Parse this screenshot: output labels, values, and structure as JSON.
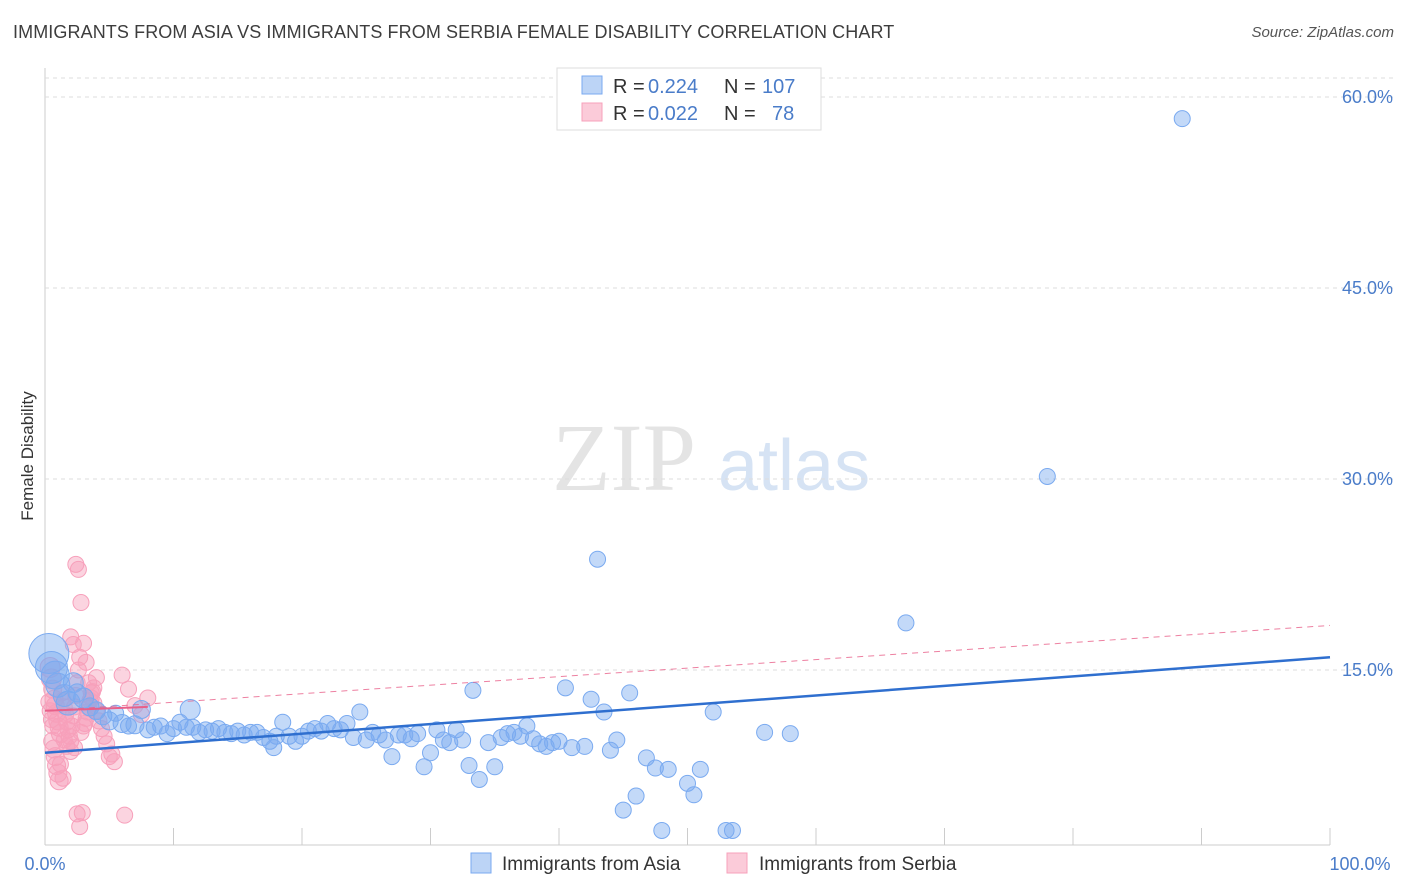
{
  "title": "IMMIGRANTS FROM ASIA VS IMMIGRANTS FROM SERBIA FEMALE DISABILITY CORRELATION CHART",
  "source": "Source: ZipAtlas.com",
  "watermark": {
    "zip": "ZIP",
    "atlas": "atlas"
  },
  "colors": {
    "asia": "#7aaaf0",
    "asia_line": "#2f6fcf",
    "serbia": "#f7a0bb",
    "serbia_line": "#e8608a",
    "axis_label": "#4a7cc9",
    "grid": "#dddddd"
  },
  "legend": {
    "asia": {
      "r_label": "R =",
      "r_value": "0.224",
      "n_label": "N =",
      "n_value": "107"
    },
    "serbia": {
      "r_label": "R =",
      "r_value": "0.022",
      "n_label": "N =",
      "n_value": "78"
    }
  },
  "chart_data": {
    "type": "scatter",
    "title": "IMMIGRANTS FROM ASIA VS IMMIGRANTS FROM SERBIA FEMALE DISABILITY CORRELATION CHART",
    "xlabel": "",
    "ylabel": "Female Disability",
    "xlim": [
      0,
      100
    ],
    "ylim": [
      0,
      63
    ],
    "x_tick_labels": [
      "0.0%",
      "100.0%"
    ],
    "y_ticks": [
      15,
      30,
      45,
      60
    ],
    "y_tick_labels": [
      "15.0%",
      "30.0%",
      "45.0%",
      "60.0%"
    ],
    "grid": true,
    "series": [
      {
        "name": "Immigrants from Asia",
        "r": 0.224,
        "n": 107,
        "trend": {
          "x0": 0,
          "y0": 8.5,
          "x1": 100,
          "y1": 16.0,
          "style": "solid"
        },
        "points": [
          [
            0.3,
            16.3,
            20
          ],
          [
            0.5,
            15.2,
            16
          ],
          [
            0.8,
            14.6,
            14
          ],
          [
            1.0,
            13.8,
            12
          ],
          [
            1.5,
            13.0,
            11
          ],
          [
            1.8,
            12.4,
            12
          ],
          [
            2.2,
            14.0,
            10
          ],
          [
            2.5,
            13.2,
            9
          ],
          [
            3.0,
            12.8,
            10
          ],
          [
            3.5,
            12.1,
            9
          ],
          [
            4.0,
            11.8,
            9
          ],
          [
            4.5,
            11.4,
            9
          ],
          [
            5.0,
            11.0,
            9
          ],
          [
            5.5,
            11.6,
            8
          ],
          [
            6.0,
            10.8,
            9
          ],
          [
            6.5,
            10.6,
            8
          ],
          [
            7.0,
            10.7,
            9
          ],
          [
            7.5,
            11.9,
            9
          ],
          [
            8.0,
            10.3,
            8
          ],
          [
            8.5,
            10.5,
            8
          ],
          [
            9.0,
            10.6,
            8
          ],
          [
            9.5,
            10.0,
            8
          ],
          [
            10.0,
            10.4,
            8
          ],
          [
            10.5,
            10.9,
            8
          ],
          [
            11.0,
            10.5,
            8
          ],
          [
            11.3,
            11.9,
            10
          ],
          [
            11.5,
            10.5,
            8
          ],
          [
            12.0,
            10.1,
            8
          ],
          [
            12.5,
            10.3,
            8
          ],
          [
            13.0,
            10.2,
            8
          ],
          [
            13.5,
            10.4,
            8
          ],
          [
            14.0,
            10.1,
            8
          ],
          [
            14.5,
            10.0,
            8
          ],
          [
            15.0,
            10.2,
            8
          ],
          [
            15.5,
            9.9,
            8
          ],
          [
            16.0,
            10.1,
            8
          ],
          [
            16.5,
            10.1,
            8
          ],
          [
            17.0,
            9.7,
            8
          ],
          [
            17.5,
            9.4,
            8
          ],
          [
            17.8,
            8.9,
            8
          ],
          [
            18.0,
            9.8,
            8
          ],
          [
            18.5,
            10.9,
            8
          ],
          [
            19.0,
            9.8,
            8
          ],
          [
            19.5,
            9.4,
            8
          ],
          [
            20.0,
            9.8,
            8
          ],
          [
            20.5,
            10.2,
            8
          ],
          [
            21.0,
            10.4,
            8
          ],
          [
            21.5,
            10.2,
            8
          ],
          [
            22.0,
            10.8,
            8
          ],
          [
            22.5,
            10.4,
            8
          ],
          [
            23.0,
            10.3,
            8
          ],
          [
            23.5,
            10.8,
            8
          ],
          [
            24.0,
            9.7,
            8
          ],
          [
            24.5,
            11.7,
            8
          ],
          [
            25.0,
            9.5,
            8
          ],
          [
            25.5,
            10.1,
            8
          ],
          [
            26.0,
            9.9,
            8
          ],
          [
            26.5,
            9.5,
            8
          ],
          [
            27.0,
            8.2,
            8
          ],
          [
            27.5,
            9.9,
            8
          ],
          [
            28.0,
            9.9,
            8
          ],
          [
            28.5,
            9.6,
            8
          ],
          [
            29.0,
            10.0,
            8
          ],
          [
            29.5,
            7.4,
            8
          ],
          [
            30.0,
            8.5,
            8
          ],
          [
            30.5,
            10.3,
            8
          ],
          [
            31.0,
            9.5,
            8
          ],
          [
            31.5,
            9.3,
            8
          ],
          [
            32.0,
            10.3,
            8
          ],
          [
            32.5,
            9.5,
            8
          ],
          [
            33.0,
            7.5,
            8
          ],
          [
            33.3,
            13.4,
            8
          ],
          [
            33.8,
            6.4,
            8
          ],
          [
            34.5,
            9.3,
            8
          ],
          [
            35.0,
            7.4,
            8
          ],
          [
            35.5,
            9.7,
            8
          ],
          [
            36.0,
            10.0,
            8
          ],
          [
            36.5,
            10.1,
            8
          ],
          [
            37.0,
            9.8,
            8
          ],
          [
            37.5,
            10.6,
            8
          ],
          [
            38.0,
            9.6,
            8
          ],
          [
            38.5,
            9.2,
            8
          ],
          [
            39.0,
            9.0,
            8
          ],
          [
            39.5,
            9.3,
            8
          ],
          [
            40.0,
            9.4,
            8
          ],
          [
            40.5,
            13.6,
            8
          ],
          [
            41.0,
            8.9,
            8
          ],
          [
            42.0,
            9.0,
            8
          ],
          [
            42.5,
            12.7,
            8
          ],
          [
            43.0,
            23.7,
            8
          ],
          [
            43.5,
            11.7,
            8
          ],
          [
            44.0,
            8.7,
            8
          ],
          [
            44.5,
            9.5,
            8
          ],
          [
            45.5,
            13.2,
            8
          ],
          [
            46.0,
            5.1,
            8
          ],
          [
            46.8,
            8.1,
            8
          ],
          [
            47.5,
            7.3,
            8
          ],
          [
            48.5,
            7.2,
            8
          ],
          [
            50.0,
            6.1,
            8
          ],
          [
            50.5,
            5.2,
            8
          ],
          [
            51.0,
            7.2,
            8
          ],
          [
            52.0,
            11.7,
            8
          ],
          [
            53.0,
            2.4,
            8
          ],
          [
            56.0,
            10.1,
            8
          ],
          [
            58.0,
            10.0,
            8
          ],
          [
            67.0,
            18.7,
            8
          ],
          [
            78.0,
            30.2,
            8
          ],
          [
            88.5,
            58.3,
            8
          ],
          [
            45.0,
            4.0,
            8
          ],
          [
            48.0,
            2.4,
            8
          ],
          [
            53.5,
            2.4,
            8
          ]
        ]
      },
      {
        "name": "Immigrants from Serbia",
        "r": 0.022,
        "n": 78,
        "trend_solid": {
          "x0": 0,
          "y0": 11.8,
          "x1": 8,
          "y1": 12.1
        },
        "trend": {
          "x0": 0,
          "y0": 11.8,
          "x1": 100,
          "y1": 18.5,
          "style": "dashed"
        },
        "points": [
          [
            0.4,
            15.2,
            10
          ],
          [
            0.5,
            14.3,
            10
          ],
          [
            0.6,
            13.5,
            9
          ],
          [
            0.7,
            12.7,
            9
          ],
          [
            0.8,
            12.2,
            9
          ],
          [
            0.9,
            11.6,
            9
          ],
          [
            1.0,
            11.0,
            9
          ],
          [
            1.1,
            10.5,
            9
          ],
          [
            1.2,
            10.0,
            9
          ],
          [
            0.6,
            9.4,
            9
          ],
          [
            0.7,
            8.8,
            9
          ],
          [
            0.8,
            8.2,
            9
          ],
          [
            0.9,
            7.5,
            9
          ],
          [
            1.0,
            6.9,
            9
          ],
          [
            1.1,
            6.3,
            9
          ],
          [
            1.3,
            13.2,
            8
          ],
          [
            1.4,
            12.6,
            8
          ],
          [
            1.5,
            12.1,
            8
          ],
          [
            1.6,
            11.5,
            8
          ],
          [
            1.7,
            10.9,
            8
          ],
          [
            1.8,
            10.3,
            8
          ],
          [
            1.9,
            9.8,
            8
          ],
          [
            2.0,
            9.4,
            8
          ],
          [
            2.1,
            10.6,
            8
          ],
          [
            2.2,
            11.4,
            8
          ],
          [
            2.3,
            12.1,
            8
          ],
          [
            2.4,
            13.0,
            8
          ],
          [
            2.5,
            14.0,
            8
          ],
          [
            2.6,
            15.0,
            8
          ],
          [
            2.7,
            16.0,
            8
          ],
          [
            2.0,
            17.6,
            8
          ],
          [
            2.2,
            17.0,
            8
          ],
          [
            2.4,
            23.3,
            8
          ],
          [
            2.6,
            22.9,
            8
          ],
          [
            2.8,
            20.3,
            8
          ],
          [
            3.0,
            17.1,
            8
          ],
          [
            3.2,
            15.6,
            8
          ],
          [
            3.4,
            14.0,
            8
          ],
          [
            3.6,
            13.2,
            8
          ],
          [
            3.8,
            12.4,
            8
          ],
          [
            4.0,
            11.8,
            8
          ],
          [
            4.2,
            11.0,
            8
          ],
          [
            4.4,
            10.4,
            8
          ],
          [
            4.6,
            9.8,
            8
          ],
          [
            4.8,
            9.2,
            8
          ],
          [
            5.0,
            8.2,
            8
          ],
          [
            5.2,
            8.4,
            8
          ],
          [
            5.4,
            7.8,
            8
          ],
          [
            3.0,
            10.6,
            8
          ],
          [
            3.2,
            11.2,
            8
          ],
          [
            3.4,
            12.0,
            8
          ],
          [
            3.6,
            12.8,
            8
          ],
          [
            3.8,
            13.6,
            8
          ],
          [
            4.0,
            14.4,
            8
          ],
          [
            6.0,
            14.6,
            8
          ],
          [
            6.5,
            13.5,
            8
          ],
          [
            7.0,
            12.2,
            8
          ],
          [
            7.5,
            11.5,
            8
          ],
          [
            8.0,
            12.8,
            8
          ],
          [
            2.5,
            3.7,
            8
          ],
          [
            2.9,
            3.8,
            8
          ],
          [
            2.7,
            2.7,
            8
          ],
          [
            6.2,
            3.6,
            8
          ],
          [
            1.5,
            9.5,
            8
          ],
          [
            1.7,
            9.0,
            8
          ],
          [
            2.0,
            8.6,
            8
          ],
          [
            2.3,
            8.9,
            8
          ],
          [
            1.2,
            7.6,
            8
          ],
          [
            1.4,
            6.5,
            8
          ],
          [
            2.8,
            10.1,
            8
          ],
          [
            3.1,
            10.8,
            8
          ],
          [
            3.3,
            11.7,
            8
          ],
          [
            3.5,
            12.6,
            8
          ],
          [
            3.7,
            13.3,
            8
          ],
          [
            0.3,
            12.5,
            8
          ],
          [
            0.4,
            11.8,
            8
          ],
          [
            0.5,
            11.1,
            8
          ],
          [
            0.6,
            10.6,
            8
          ]
        ]
      }
    ],
    "legend_position": "top-center",
    "bottom_legend": [
      "Immigrants from Asia",
      "Immigrants from Serbia"
    ]
  }
}
